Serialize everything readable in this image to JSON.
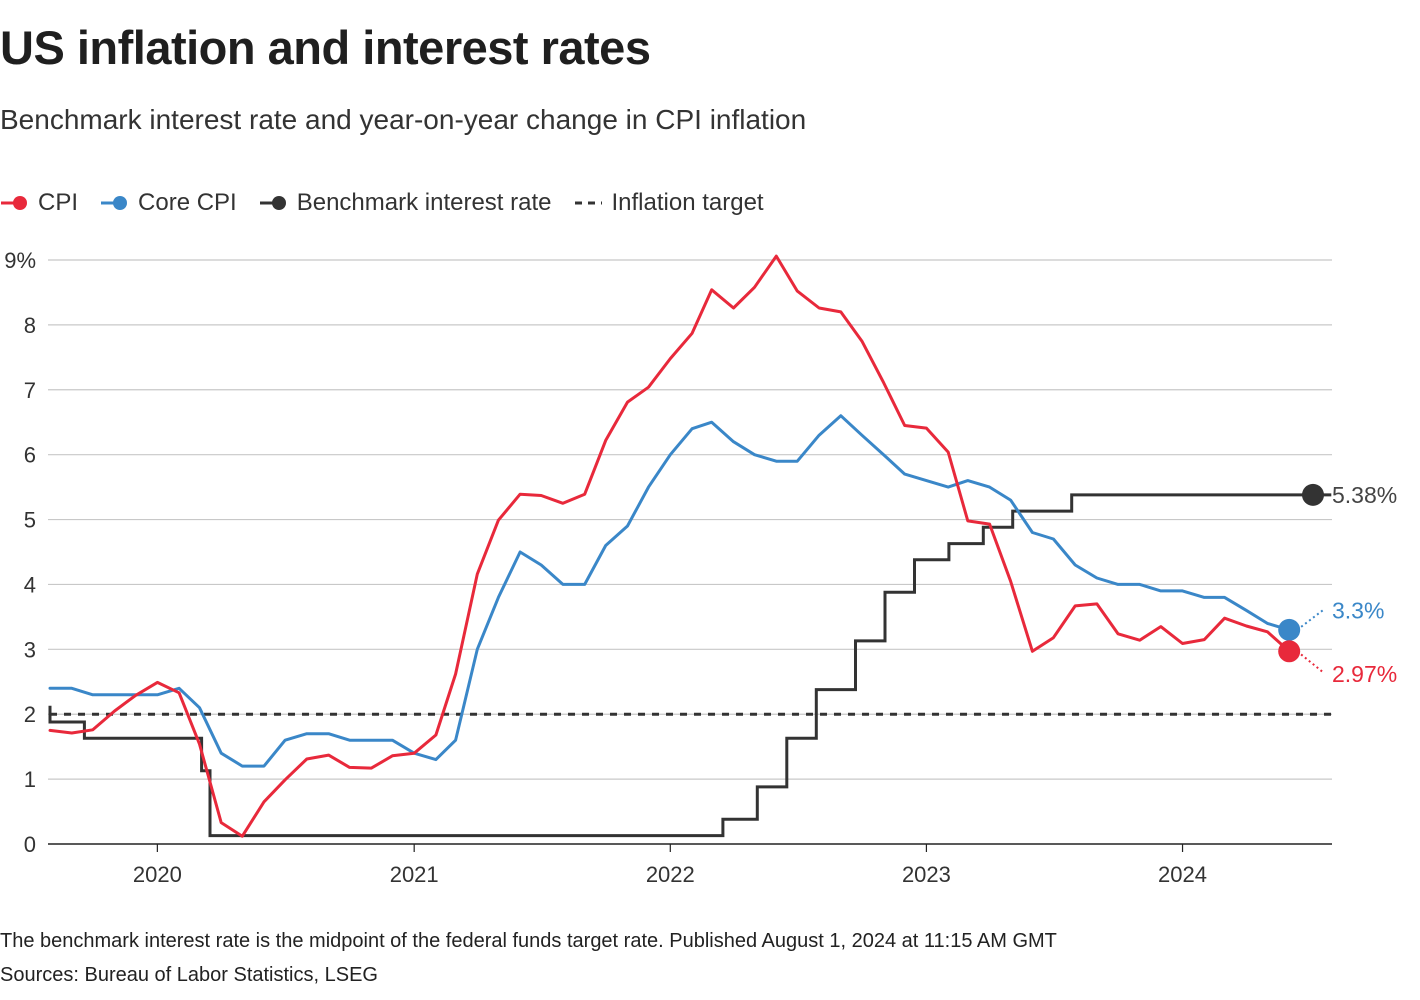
{
  "title": "US inflation and interest rates",
  "subtitle": "Benchmark interest rate and year-on-year change in CPI inflation",
  "legend": [
    {
      "label": "CPI",
      "color": "#e8293b",
      "style": "dot"
    },
    {
      "label": "Core CPI",
      "color": "#3a87c8",
      "style": "dot"
    },
    {
      "label": "Benchmark interest rate",
      "color": "#333333",
      "style": "dot"
    },
    {
      "label": "Inflation target",
      "color": "#333333",
      "style": "dashed"
    }
  ],
  "footnote": "The benchmark interest rate is the midpoint of the federal funds target rate. Published August 1, 2024 at 11:15 AM GMT",
  "sources": "Sources: Bureau of Labor Statistics, LSEG",
  "chart_data": {
    "type": "line",
    "ylim": [
      0,
      9
    ],
    "y_ticks": [
      {
        "value": 0,
        "label": "0"
      },
      {
        "value": 1,
        "label": "1"
      },
      {
        "value": 2,
        "label": "2"
      },
      {
        "value": 3,
        "label": "3"
      },
      {
        "value": 4,
        "label": "4"
      },
      {
        "value": 5,
        "label": "5"
      },
      {
        "value": 6,
        "label": "6"
      },
      {
        "value": 7,
        "label": "7"
      },
      {
        "value": 8,
        "label": "8"
      },
      {
        "value": 9,
        "label": "9%"
      }
    ],
    "x_range": [
      "2019-08",
      "2024-08"
    ],
    "x_ticks": [
      {
        "value": "2020-01",
        "label": "2020"
      },
      {
        "value": "2021-01",
        "label": "2021"
      },
      {
        "value": "2022-01",
        "label": "2022"
      },
      {
        "value": "2023-01",
        "label": "2023"
      },
      {
        "value": "2024-01",
        "label": "2024"
      }
    ],
    "grid": true,
    "legend_position": "top-left",
    "series": [
      {
        "name": "CPI",
        "color": "#e8293b",
        "step": false,
        "end_label": "2.97%",
        "end_label_color": "#e8293b",
        "points": [
          [
            "2019-08",
            1.75
          ],
          [
            "2019-09",
            1.71
          ],
          [
            "2019-10",
            1.76
          ],
          [
            "2019-11",
            2.05
          ],
          [
            "2019-12",
            2.29
          ],
          [
            "2020-01",
            2.49
          ],
          [
            "2020-02",
            2.33
          ],
          [
            "2020-03",
            1.54
          ],
          [
            "2020-04",
            0.33
          ],
          [
            "2020-05",
            0.12
          ],
          [
            "2020-06",
            0.65
          ],
          [
            "2020-07",
            0.99
          ],
          [
            "2020-08",
            1.31
          ],
          [
            "2020-09",
            1.37
          ],
          [
            "2020-10",
            1.18
          ],
          [
            "2020-11",
            1.17
          ],
          [
            "2020-12",
            1.36
          ],
          [
            "2021-01",
            1.4
          ],
          [
            "2021-02",
            1.68
          ],
          [
            "2021-03",
            2.62
          ],
          [
            "2021-04",
            4.16
          ],
          [
            "2021-05",
            4.99
          ],
          [
            "2021-06",
            5.39
          ],
          [
            "2021-07",
            5.37
          ],
          [
            "2021-08",
            5.25
          ],
          [
            "2021-09",
            5.39
          ],
          [
            "2021-10",
            6.22
          ],
          [
            "2021-11",
            6.81
          ],
          [
            "2021-12",
            7.04
          ],
          [
            "2022-01",
            7.48
          ],
          [
            "2022-02",
            7.87
          ],
          [
            "2022-03",
            8.54
          ],
          [
            "2022-04",
            8.26
          ],
          [
            "2022-05",
            8.58
          ],
          [
            "2022-06",
            9.06
          ],
          [
            "2022-07",
            8.52
          ],
          [
            "2022-08",
            8.26
          ],
          [
            "2022-09",
            8.2
          ],
          [
            "2022-10",
            7.75
          ],
          [
            "2022-11",
            7.11
          ],
          [
            "2022-12",
            6.45
          ],
          [
            "2023-01",
            6.41
          ],
          [
            "2023-02",
            6.04
          ],
          [
            "2023-03",
            4.98
          ],
          [
            "2023-04",
            4.93
          ],
          [
            "2023-05",
            4.05
          ],
          [
            "2023-06",
            2.97
          ],
          [
            "2023-07",
            3.18
          ],
          [
            "2023-08",
            3.67
          ],
          [
            "2023-09",
            3.7
          ],
          [
            "2023-10",
            3.24
          ],
          [
            "2023-11",
            3.14
          ],
          [
            "2023-12",
            3.35
          ],
          [
            "2024-01",
            3.09
          ],
          [
            "2024-02",
            3.15
          ],
          [
            "2024-03",
            3.48
          ],
          [
            "2024-04",
            3.36
          ],
          [
            "2024-05",
            3.27
          ],
          [
            "2024-06",
            2.97
          ]
        ]
      },
      {
        "name": "Core CPI",
        "color": "#3a87c8",
        "step": false,
        "end_label": "3.3%",
        "end_label_color": "#3a87c8",
        "points": [
          [
            "2019-08",
            2.4
          ],
          [
            "2019-09",
            2.4
          ],
          [
            "2019-10",
            2.3
          ],
          [
            "2019-11",
            2.3
          ],
          [
            "2019-12",
            2.3
          ],
          [
            "2020-01",
            2.3
          ],
          [
            "2020-02",
            2.4
          ],
          [
            "2020-03",
            2.1
          ],
          [
            "2020-04",
            1.4
          ],
          [
            "2020-05",
            1.2
          ],
          [
            "2020-06",
            1.2
          ],
          [
            "2020-07",
            1.6
          ],
          [
            "2020-08",
            1.7
          ],
          [
            "2020-09",
            1.7
          ],
          [
            "2020-10",
            1.6
          ],
          [
            "2020-11",
            1.6
          ],
          [
            "2020-12",
            1.6
          ],
          [
            "2021-01",
            1.4
          ],
          [
            "2021-02",
            1.3
          ],
          [
            "2021-03",
            1.6
          ],
          [
            "2021-04",
            3.0
          ],
          [
            "2021-05",
            3.8
          ],
          [
            "2021-06",
            4.5
          ],
          [
            "2021-07",
            4.3
          ],
          [
            "2021-08",
            4.0
          ],
          [
            "2021-09",
            4.0
          ],
          [
            "2021-10",
            4.6
          ],
          [
            "2021-11",
            4.9
          ],
          [
            "2021-12",
            5.5
          ],
          [
            "2022-01",
            6.0
          ],
          [
            "2022-02",
            6.4
          ],
          [
            "2022-03",
            6.5
          ],
          [
            "2022-04",
            6.2
          ],
          [
            "2022-05",
            6.0
          ],
          [
            "2022-06",
            5.9
          ],
          [
            "2022-07",
            5.9
          ],
          [
            "2022-08",
            6.3
          ],
          [
            "2022-09",
            6.6
          ],
          [
            "2022-10",
            6.3
          ],
          [
            "2022-11",
            6.0
          ],
          [
            "2022-12",
            5.7
          ],
          [
            "2023-01",
            5.6
          ],
          [
            "2023-02",
            5.5
          ],
          [
            "2023-03",
            5.6
          ],
          [
            "2023-04",
            5.5
          ],
          [
            "2023-05",
            5.3
          ],
          [
            "2023-06",
            4.8
          ],
          [
            "2023-07",
            4.7
          ],
          [
            "2023-08",
            4.3
          ],
          [
            "2023-09",
            4.1
          ],
          [
            "2023-10",
            4.0
          ],
          [
            "2023-11",
            4.0
          ],
          [
            "2023-12",
            3.9
          ],
          [
            "2024-01",
            3.9
          ],
          [
            "2024-02",
            3.8
          ],
          [
            "2024-03",
            3.8
          ],
          [
            "2024-04",
            3.6
          ],
          [
            "2024-05",
            3.4
          ],
          [
            "2024-06",
            3.3
          ]
        ]
      },
      {
        "name": "Benchmark interest rate",
        "color": "#333333",
        "step": true,
        "end_label": "5.38%",
        "end_label_color": "#444444",
        "points": [
          [
            "2019-08-01",
            2.13
          ],
          [
            "2019-08-01",
            1.88
          ],
          [
            "2019-09-19",
            1.88
          ],
          [
            "2019-09-19",
            1.63
          ],
          [
            "2019-10-31",
            1.63
          ],
          [
            "2019-10-31",
            1.63
          ],
          [
            "2020-03-04",
            1.63
          ],
          [
            "2020-03-04",
            1.13
          ],
          [
            "2020-03-16",
            1.13
          ],
          [
            "2020-03-16",
            0.13
          ],
          [
            "2022-03-17",
            0.13
          ],
          [
            "2022-03-17",
            0.38
          ],
          [
            "2022-05-05",
            0.38
          ],
          [
            "2022-05-05",
            0.88
          ],
          [
            "2022-06-16",
            0.88
          ],
          [
            "2022-06-16",
            1.63
          ],
          [
            "2022-07-28",
            1.63
          ],
          [
            "2022-07-28",
            2.38
          ],
          [
            "2022-09-22",
            2.38
          ],
          [
            "2022-09-22",
            3.13
          ],
          [
            "2022-11-03",
            3.13
          ],
          [
            "2022-11-03",
            3.88
          ],
          [
            "2022-12-15",
            3.88
          ],
          [
            "2022-12-15",
            4.38
          ],
          [
            "2023-02-02",
            4.38
          ],
          [
            "2023-02-02",
            4.63
          ],
          [
            "2023-03-23",
            4.63
          ],
          [
            "2023-03-23",
            4.88
          ],
          [
            "2023-05-04",
            4.88
          ],
          [
            "2023-05-04",
            5.13
          ],
          [
            "2023-07-27",
            5.13
          ],
          [
            "2023-07-27",
            5.38
          ],
          [
            "2024-07-31",
            5.38
          ]
        ]
      },
      {
        "name": "Inflation target",
        "color": "#333333",
        "step": false,
        "dashed": true,
        "points": [
          [
            "2019-08",
            2
          ],
          [
            "2024-08",
            2
          ]
        ]
      }
    ]
  }
}
